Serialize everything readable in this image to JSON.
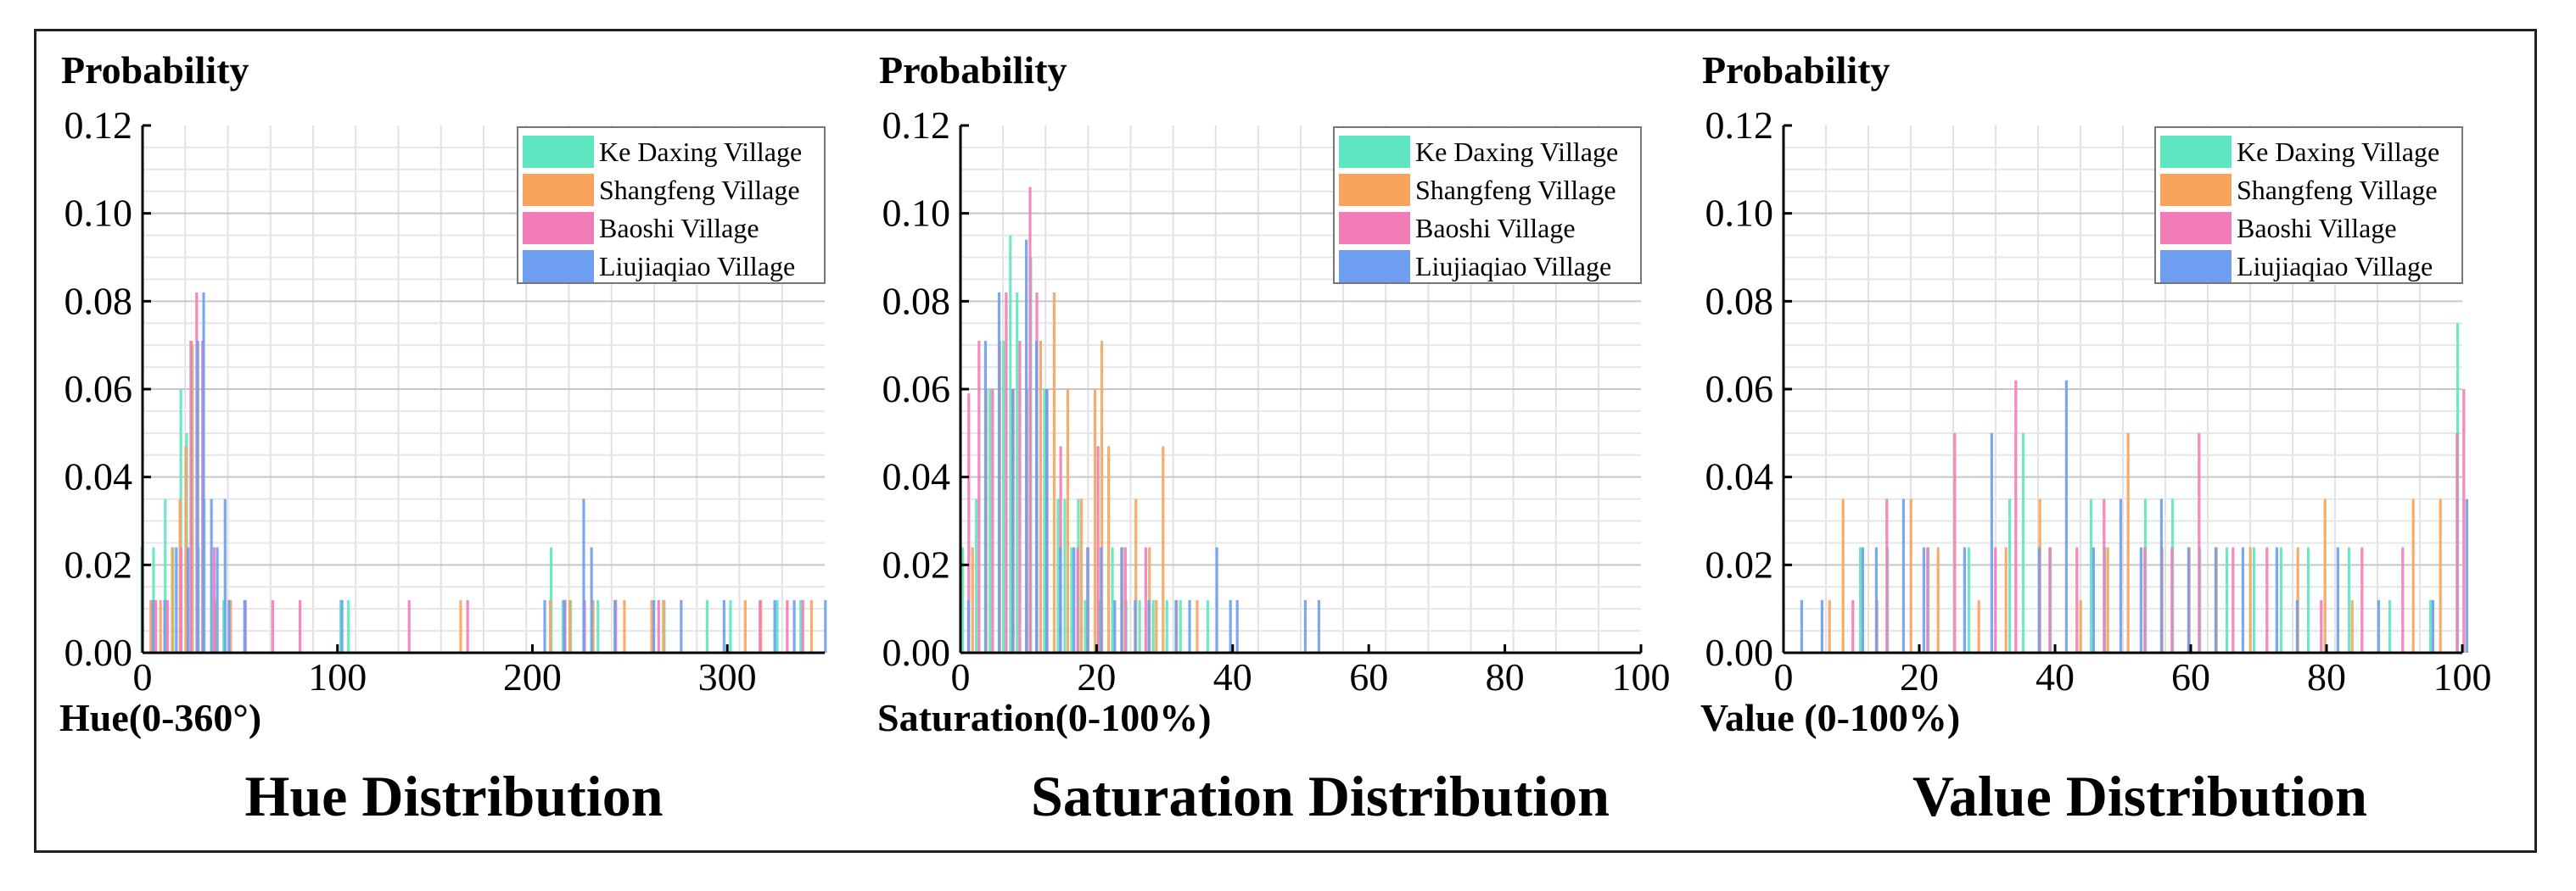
{
  "colors": {
    "ke_daxing": "#5ee6c0",
    "shangfeng": "#f8a35c",
    "baoshi": "#f27cb6",
    "liujiaqiao": "#6d9ef0"
  },
  "legend": [
    "Ke Daxing Village",
    "Shangfeng Village",
    "Baoshi Village",
    "Liujiaqiao Village"
  ],
  "chart_data": [
    {
      "type": "bar",
      "title": "Hue Distribution",
      "ylabel": "Probability",
      "xlabel": "Hue(0-360°)",
      "xlim": [
        0,
        350
      ],
      "ylim": [
        0,
        0.12
      ],
      "xticks": [
        0,
        100,
        200,
        300
      ],
      "yticks": [
        "0.00",
        "0.02",
        "0.04",
        "0.06",
        "0.08",
        "0.10",
        "0.12"
      ],
      "series": [
        {
          "name": "Ke Daxing Village",
          "x": [
            2,
            8,
            14,
            18,
            22,
            25,
            28,
            31,
            34,
            44,
            104,
            108,
            212,
            218,
            222,
            236,
            270,
            292,
            304,
            328,
            340
          ],
          "values": [
            0.024,
            0.024,
            0.035,
            0.024,
            0.06,
            0.05,
            0.07,
            0.024,
            0.035,
            0.012,
            0.012,
            0.012,
            0.024,
            0.012,
            0.012,
            0.012,
            0.012,
            0.012,
            0.012,
            0.012,
            0.012
          ]
        },
        {
          "name": "Shangfeng Village",
          "x": [
            5,
            10,
            16,
            20,
            23,
            26,
            29,
            32,
            38,
            46,
            164,
            210,
            220,
            232,
            248,
            262,
            268,
            310,
            318,
            344
          ],
          "values": [
            0.012,
            0.012,
            0.024,
            0.035,
            0.047,
            0.071,
            0.06,
            0.035,
            0.012,
            0.012,
            0.012,
            0.012,
            0.012,
            0.012,
            0.012,
            0.012,
            0.012,
            0.012,
            0.012,
            0.012
          ]
        },
        {
          "name": "Baoshi Village",
          "x": [
            6,
            12,
            19,
            24,
            27,
            30,
            36,
            52,
            66,
            80,
            136,
            166,
            216,
            226,
            242,
            264,
            316,
            330,
            338
          ],
          "values": [
            0.012,
            0.012,
            0.024,
            0.071,
            0.082,
            0.071,
            0.024,
            0.012,
            0.012,
            0.012,
            0.012,
            0.012,
            0.012,
            0.012,
            0.012,
            0.012,
            0.012,
            0.012,
            0.012
          ]
        },
        {
          "name": "Liujiaqiao Village",
          "x": [
            3,
            9,
            15,
            21,
            26,
            29,
            33,
            36,
            40,
            42,
            50,
            100,
            204,
            214,
            224,
            228,
            240,
            260,
            274,
            296,
            322,
            332,
            348
          ],
          "values": [
            0.012,
            0.012,
            0.024,
            0.024,
            0.071,
            0.082,
            0.035,
            0.024,
            0.035,
            0.012,
            0.012,
            0.012,
            0.012,
            0.012,
            0.035,
            0.024,
            0.012,
            0.012,
            0.012,
            0.012,
            0.012,
            0.012,
            0.012
          ]
        }
      ]
    },
    {
      "type": "bar",
      "title": "Saturation Distribution",
      "ylabel": "Probability",
      "xlabel": "Saturation(0-100%)",
      "xlim": [
        0,
        100
      ],
      "ylim": [
        0,
        0.12
      ],
      "xticks": [
        0,
        20,
        40,
        60,
        80,
        100
      ],
      "yticks": [
        "0.00",
        "0.02",
        "0.04",
        "0.06",
        "0.08",
        "0.10",
        "0.12"
      ],
      "series": [
        {
          "name": "Ke Daxing Village",
          "x": [
            1,
            3,
            5,
            7,
            8,
            9,
            11,
            13,
            15,
            16,
            17,
            18,
            19,
            21,
            23,
            25,
            27,
            29,
            31,
            33,
            37
          ],
          "values": [
            0.024,
            0.035,
            0.06,
            0.071,
            0.095,
            0.082,
            0.09,
            0.06,
            0.035,
            0.035,
            0.024,
            0.035,
            0.012,
            0.012,
            0.024,
            0.012,
            0.012,
            0.012,
            0.012,
            0.012,
            0.012
          ]
        },
        {
          "name": "Shangfeng Village",
          "x": [
            2,
            4,
            6,
            8,
            10,
            12,
            14,
            16,
            18,
            19,
            20,
            21,
            22,
            24,
            26,
            28,
            29,
            30,
            32,
            35
          ],
          "values": [
            0.024,
            0.06,
            0.071,
            0.06,
            0.06,
            0.071,
            0.082,
            0.06,
            0.035,
            0.024,
            0.06,
            0.071,
            0.047,
            0.024,
            0.035,
            0.024,
            0.012,
            0.047,
            0.012,
            0.012
          ]
        },
        {
          "name": "Baoshi Village",
          "x": [
            1,
            2.5,
            4.5,
            6.5,
            8.5,
            10,
            11,
            12.5,
            14.5,
            17,
            20,
            24,
            27
          ],
          "values": [
            0.059,
            0.071,
            0.06,
            0.082,
            0.071,
            0.106,
            0.082,
            0.06,
            0.047,
            0.024,
            0.047,
            0.024,
            0.024
          ]
        },
        {
          "name": "Liujiaqiao Village",
          "x": [
            0.5,
            3,
            5,
            7,
            9,
            10.5,
            12,
            14,
            16,
            18,
            20,
            22,
            23,
            25,
            27,
            31,
            33,
            37,
            39,
            40,
            50,
            52
          ],
          "values": [
            0.012,
            0.071,
            0.082,
            0.06,
            0.094,
            0.071,
            0.06,
            0.024,
            0.024,
            0.024,
            0.024,
            0.012,
            0.024,
            0.012,
            0.012,
            0.012,
            0.012,
            0.024,
            0.012,
            0.012,
            0.012,
            0.012
          ]
        }
      ]
    },
    {
      "type": "bar",
      "title": "Value Distribution",
      "ylabel": "Probability",
      "xlabel": "Value (0-100%)",
      "xlim": [
        0,
        100
      ],
      "ylim": [
        0,
        0.12
      ],
      "xticks": [
        0,
        20,
        40,
        60,
        80,
        100
      ],
      "yticks": [
        "0.00",
        "0.02",
        "0.04",
        "0.06",
        "0.08",
        "0.10",
        "0.12"
      ],
      "series": [
        {
          "name": "Ke Daxing Village",
          "x": [
            12,
            16,
            22,
            28,
            34,
            36,
            40,
            46,
            48,
            54,
            58,
            62,
            66,
            70,
            74,
            78,
            84,
            90,
            96,
            100
          ],
          "values": [
            0.024,
            0.024,
            0.024,
            0.024,
            0.035,
            0.05,
            0.024,
            0.035,
            0.024,
            0.035,
            0.035,
            0.024,
            0.024,
            0.024,
            0.024,
            0.024,
            0.024,
            0.012,
            0.012,
            0.075
          ]
        },
        {
          "name": "Shangfeng Village",
          "x": [
            7,
            9,
            14,
            19,
            23,
            29,
            33,
            38,
            44,
            48,
            51,
            56,
            60,
            64,
            69,
            76,
            80,
            84,
            93,
            97
          ],
          "values": [
            0.012,
            0.035,
            0.012,
            0.035,
            0.024,
            0.012,
            0.024,
            0.035,
            0.012,
            0.024,
            0.05,
            0.024,
            0.024,
            0.024,
            0.024,
            0.024,
            0.035,
            0.012,
            0.035,
            0.035
          ]
        },
        {
          "name": "Baoshi Village",
          "x": [
            10,
            15,
            21,
            25,
            31,
            34,
            39,
            43,
            47,
            53,
            57,
            61,
            66,
            71,
            79,
            85,
            91,
            99,
            100
          ],
          "values": [
            0.012,
            0.035,
            0.024,
            0.05,
            0.024,
            0.062,
            0.024,
            0.024,
            0.035,
            0.024,
            0.024,
            0.05,
            0.024,
            0.024,
            0.012,
            0.024,
            0.024,
            0.05,
            0.06
          ]
        },
        {
          "name": "Liujiaqiao Village",
          "x": [
            2,
            5,
            11,
            13,
            17,
            20,
            26,
            30,
            37,
            41,
            45,
            49,
            52,
            55,
            59,
            63,
            67,
            72,
            75,
            81,
            87,
            95,
            100
          ],
          "values": [
            0.012,
            0.012,
            0.024,
            0.024,
            0.035,
            0.024,
            0.024,
            0.05,
            0.024,
            0.062,
            0.024,
            0.035,
            0.024,
            0.035,
            0.024,
            0.024,
            0.024,
            0.024,
            0.012,
            0.024,
            0.012,
            0.012,
            0.035
          ]
        }
      ]
    }
  ]
}
